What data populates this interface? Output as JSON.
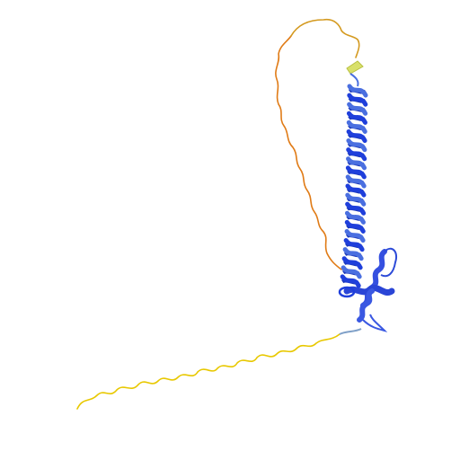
{
  "scene": {
    "background": "#ffffff",
    "subject": "protein-ribbon-structure",
    "colors": {
      "very_high_confidence": "#1f3fdb",
      "high_confidence": "#4a6fe0",
      "helix_highlight": "#6f8cf0",
      "medium_confidence": "#d8e06a",
      "low_confidence": "#e8c800",
      "very_low_confidence": "#e07b16"
    }
  }
}
